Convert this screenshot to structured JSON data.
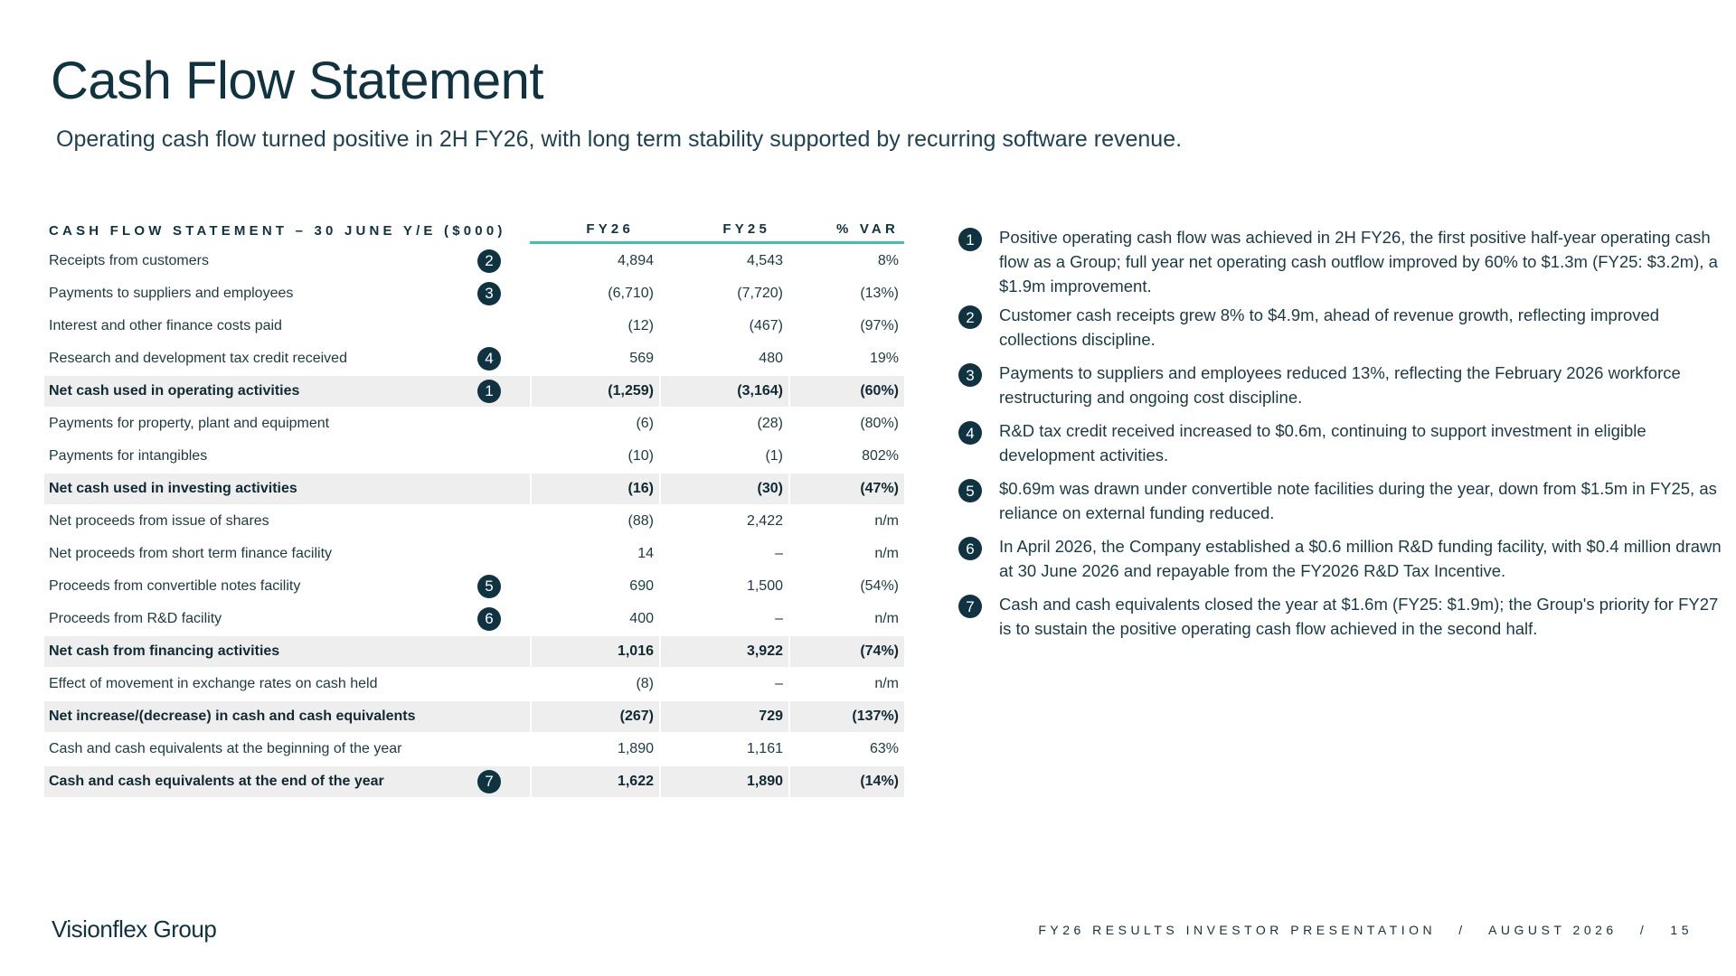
{
  "header": {
    "title": "Cash Flow Statement",
    "subtitle": "Operating cash flow turned positive in 2H FY26, with long term stability supported by recurring software revenue."
  },
  "table": {
    "columns": [
      "CASH FLOW STATEMENT – 30 JUNE Y/E ($000)",
      "FY26",
      "FY25",
      "% VAR"
    ],
    "rows": [
      {
        "label": "Receipts from customers",
        "fy26": "4,894",
        "fy25": "4,543",
        "var": "8%",
        "marker": "2",
        "total": false
      },
      {
        "label": "Payments to suppliers and employees",
        "fy26": "(6,710)",
        "fy25": "(7,720)",
        "var": "(13%)",
        "marker": "3",
        "total": false
      },
      {
        "label": "Interest and other finance costs paid",
        "fy26": "(12)",
        "fy25": "(467)",
        "var": "(97%)",
        "marker": "",
        "total": false
      },
      {
        "label": "Research and development tax credit received",
        "fy26": "569",
        "fy25": "480",
        "var": "19%",
        "marker": "4",
        "total": false
      },
      {
        "label": "Net cash used in operating activities",
        "fy26": "(1,259)",
        "fy25": "(3,164)",
        "var": "(60%)",
        "marker": "1",
        "total": true
      },
      {
        "label": "Payments for property, plant and equipment",
        "fy26": "(6)",
        "fy25": "(28)",
        "var": "(80%)",
        "marker": "",
        "total": false
      },
      {
        "label": "Payments for intangibles",
        "fy26": "(10)",
        "fy25": "(1)",
        "var": "802%",
        "marker": "",
        "total": false
      },
      {
        "label": "Net cash used in investing activities",
        "fy26": "(16)",
        "fy25": "(30)",
        "var": "(47%)",
        "marker": "",
        "total": true
      },
      {
        "label": "Net proceeds from issue of shares",
        "fy26": "(88)",
        "fy25": "2,422",
        "var": "n/m",
        "marker": "",
        "total": false
      },
      {
        "label": "Net proceeds from short term finance facility",
        "fy26": "14",
        "fy25": "–",
        "var": "n/m",
        "marker": "",
        "total": false
      },
      {
        "label": "Proceeds from convertible notes facility",
        "fy26": "690",
        "fy25": "1,500",
        "var": "(54%)",
        "marker": "5",
        "total": false
      },
      {
        "label": "Proceeds from R&D facility",
        "fy26": "400",
        "fy25": "–",
        "var": "n/m",
        "marker": "6",
        "total": false
      },
      {
        "label": "Net cash from financing activities",
        "fy26": "1,016",
        "fy25": "3,922",
        "var": "(74%)",
        "marker": "",
        "total": true
      },
      {
        "label": "Effect of movement in exchange rates on cash held",
        "fy26": "(8)",
        "fy25": "–",
        "var": "n/m",
        "marker": "",
        "total": false
      },
      {
        "label": "Net increase/(decrease) in cash and cash equivalents",
        "fy26": "(267)",
        "fy25": "729",
        "var": "(137%)",
        "marker": "",
        "total": true
      },
      {
        "label": "Cash and cash equivalents at the beginning of the year",
        "fy26": "1,890",
        "fy25": "1,161",
        "var": "63%",
        "marker": "",
        "total": false
      },
      {
        "label": "Cash and cash equivalents at the end of the year",
        "fy26": "1,622",
        "fy25": "1,890",
        "var": "(14%)",
        "marker": "7",
        "total": true
      }
    ]
  },
  "notes": [
    {
      "num": "1",
      "text": "Positive operating cash flow was achieved in 2H FY26, the first positive half-year operating cash flow as a Group; full year net operating cash outflow improved by 60% to $1.3m (FY25: $3.2m), a $1.9m improvement."
    },
    {
      "num": "2",
      "text": "Customer cash receipts grew 8% to $4.9m, ahead of revenue growth, reflecting improved collections discipline."
    },
    {
      "num": "3",
      "text": "Payments to suppliers and employees reduced 13%, reflecting the February 2026 workforce restructuring and ongoing cost discipline."
    },
    {
      "num": "4",
      "text": "R&D tax credit received increased to $0.6m, continuing to support investment in eligible development activities."
    },
    {
      "num": "5",
      "text": "$0.69m was drawn under convertible note facilities during the year, down from $1.5m in FY25, as reliance on external funding reduced."
    },
    {
      "num": "6",
      "text": "In April 2026, the Company established a $0.6 million R&D funding facility, with $0.4 million drawn at 30 June 2026 and repayable from the FY2026 R&D Tax Incentive."
    },
    {
      "num": "7",
      "text": "Cash and cash equivalents closed the year at $1.6m (FY25: $1.9m); the Group's priority for FY27 is to sustain the positive operating cash flow achieved in the second half."
    }
  ],
  "footer": {
    "logo": "Visionflex Group",
    "text": "FY26 RESULTS INVESTOR PRESENTATION   /   AUGUST 2026   /   15"
  },
  "colors": {
    "navy": "#0f3340",
    "accent": "#3fc1ad",
    "total_row_bg": "#eeeeee"
  }
}
